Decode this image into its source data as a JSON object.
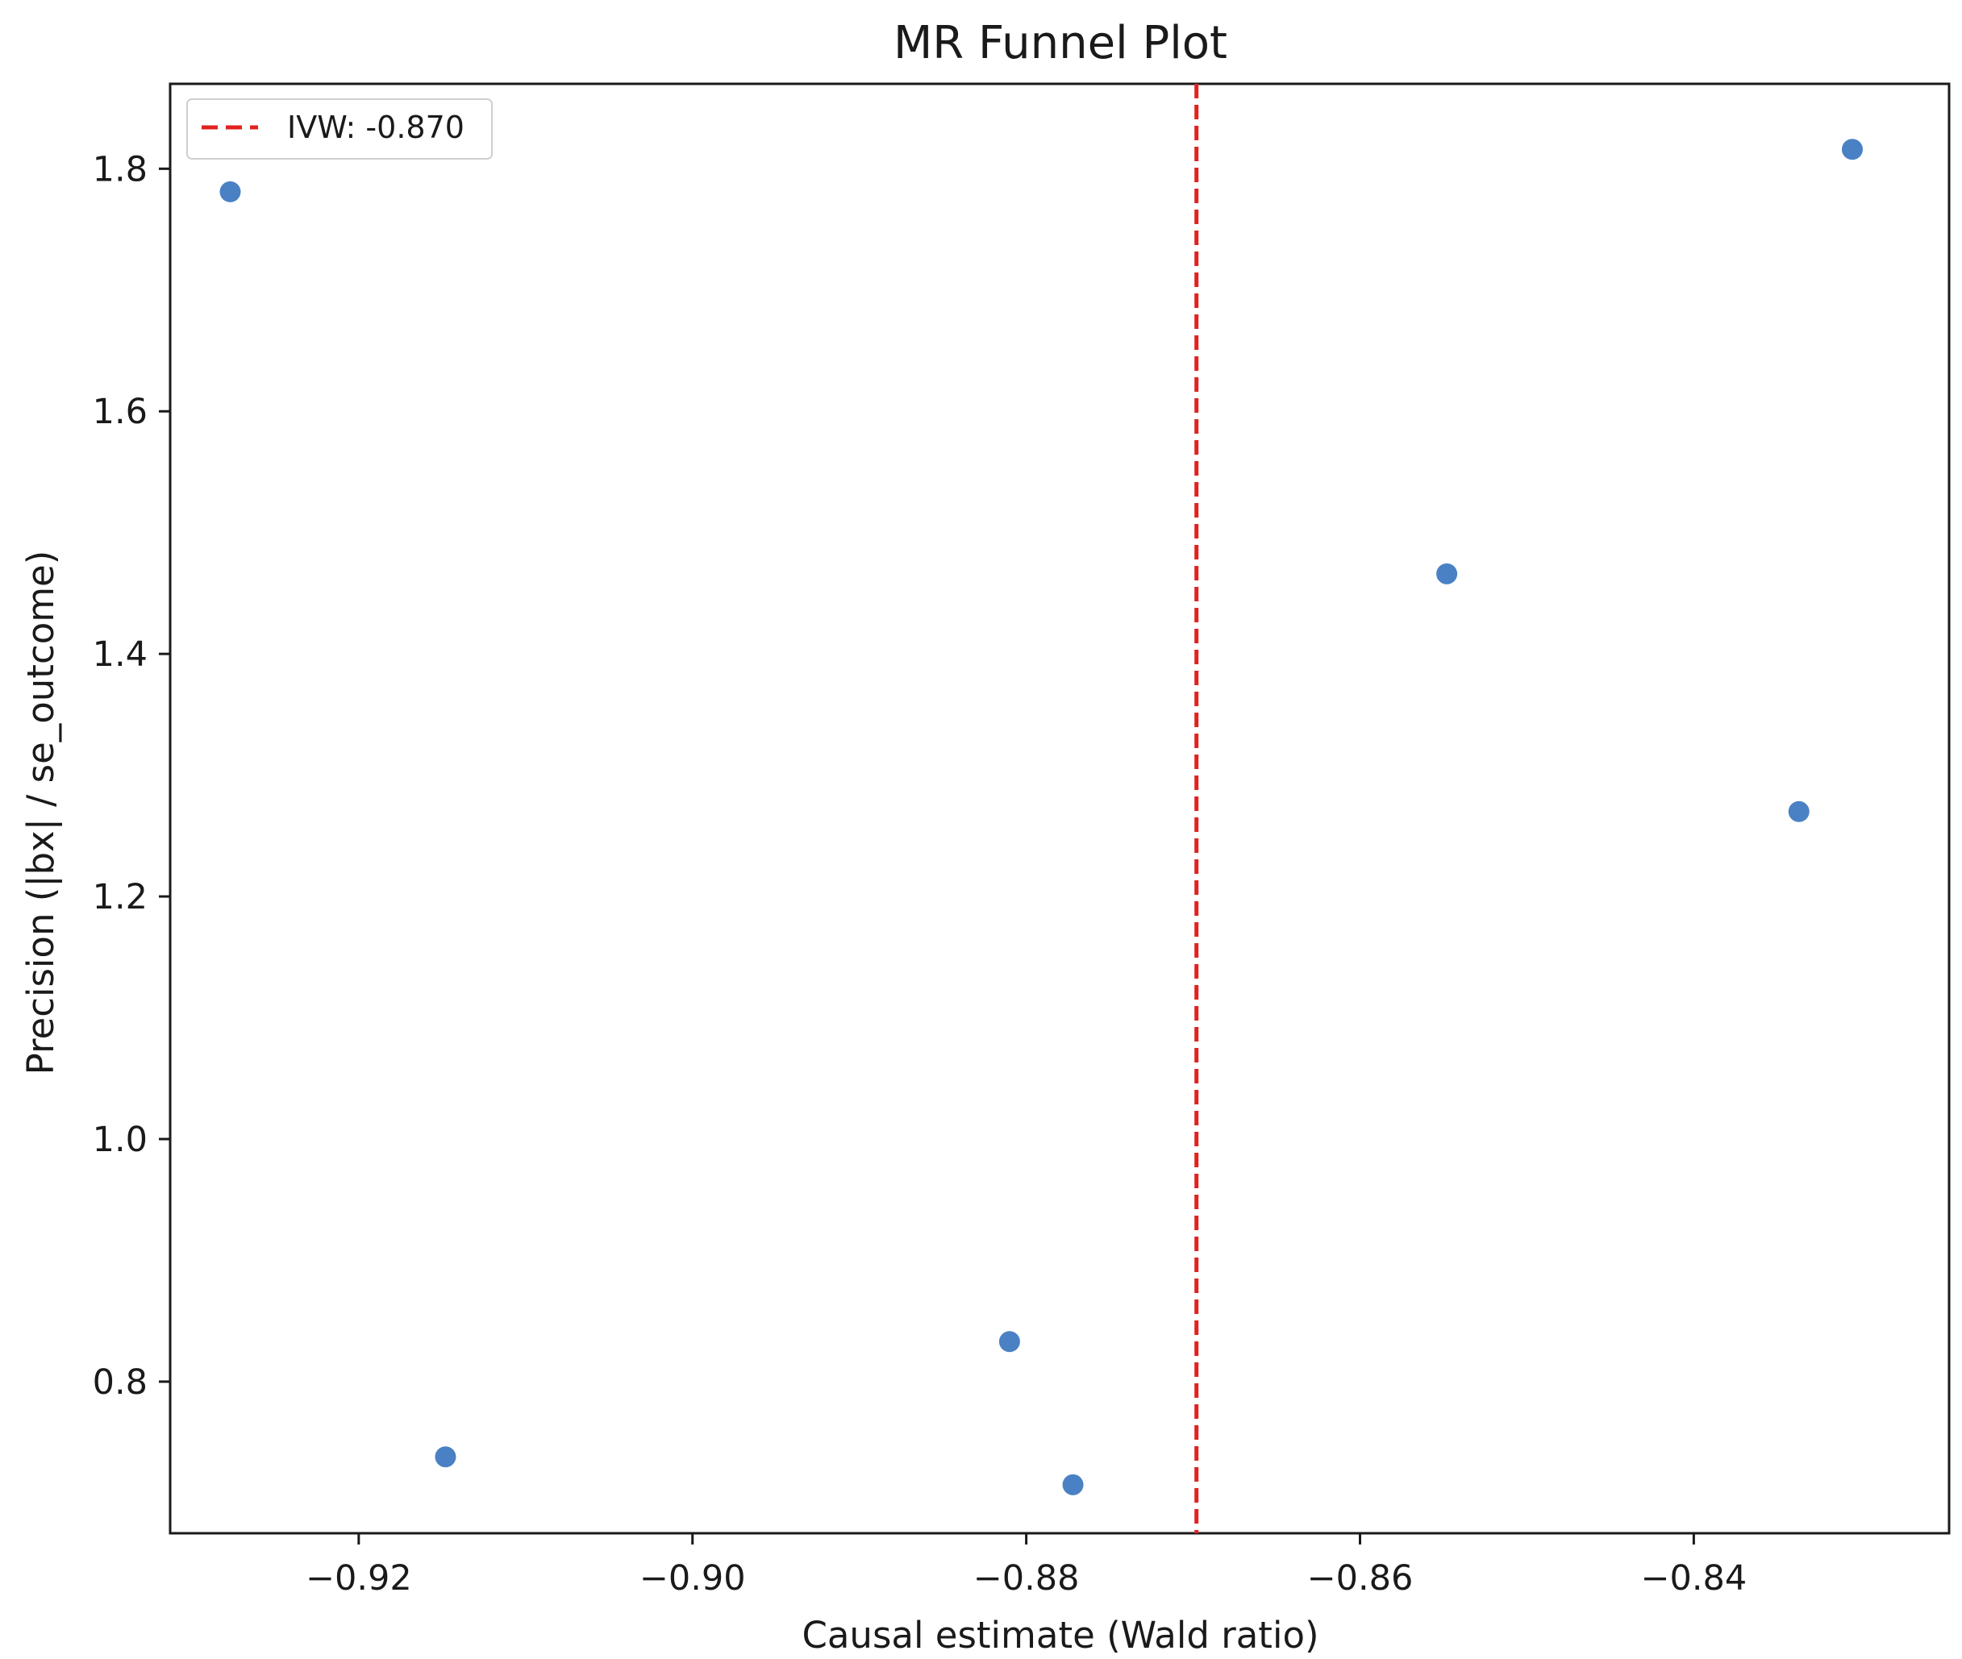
{
  "chart_data": {
    "type": "scatter",
    "title": "MR Funnel Plot",
    "xlabel": "Causal estimate (Wald ratio)",
    "ylabel": "Precision (|bx| / se_outcome)",
    "xlim": [
      -0.9313,
      -0.8247
    ],
    "ylim": [
      0.675,
      1.87
    ],
    "x_ticks": [
      -0.92,
      -0.9,
      -0.88,
      -0.86,
      -0.84
    ],
    "x_tick_labels": [
      "−0.92",
      "−0.90",
      "−0.88",
      "−0.86",
      "−0.84"
    ],
    "y_ticks": [
      0.8,
      1.0,
      1.2,
      1.4,
      1.6,
      1.8
    ],
    "y_tick_labels": [
      "0.8",
      "1.0",
      "1.2",
      "1.4",
      "1.6",
      "1.8"
    ],
    "grid": false,
    "legend_position": "top-left",
    "point_color": "#4a81c4",
    "points": [
      {
        "x": -0.9277,
        "y": 1.781
      },
      {
        "x": -0.9148,
        "y": 0.738
      },
      {
        "x": -0.881,
        "y": 0.833
      },
      {
        "x": -0.8772,
        "y": 0.715
      },
      {
        "x": -0.8548,
        "y": 1.466
      },
      {
        "x": -0.8337,
        "y": 1.27
      },
      {
        "x": -0.8305,
        "y": 1.816
      }
    ],
    "reference_line": {
      "label": "IVW: -0.870",
      "x": -0.8698,
      "color": "#e0231f",
      "style": "dashed"
    }
  }
}
